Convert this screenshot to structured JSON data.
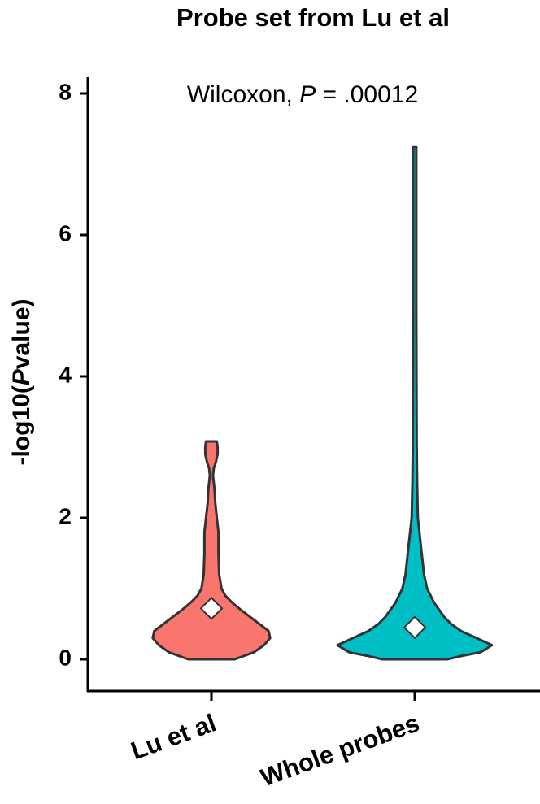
{
  "chart_data": {
    "type": "violin",
    "title": "Probe set from Lu et al",
    "annotation": {
      "prefix": "Wilcoxon, ",
      "italic": "P",
      "suffix": " = .00012"
    },
    "y_label": {
      "prefix": "-log10(",
      "italic": "P",
      "suffix": "value)"
    },
    "categories": [
      "Lu et al",
      "Whole probes"
    ],
    "series": [
      {
        "color": "#F8766D",
        "y": [
          0,
          0.1,
          0.2,
          0.3,
          0.4,
          0.5,
          0.6,
          0.7,
          0.8,
          0.9,
          1.0,
          1.2,
          1.5,
          1.8,
          2.0,
          2.2,
          2.4,
          2.6,
          2.7,
          2.8,
          2.9,
          3.0,
          3.08
        ],
        "density": [
          0.3,
          0.55,
          0.68,
          0.76,
          0.74,
          0.62,
          0.5,
          0.38,
          0.27,
          0.18,
          0.13,
          0.1,
          0.09,
          0.09,
          0.07,
          0.05,
          0.04,
          0.02,
          0.03,
          0.06,
          0.08,
          0.08,
          0.07
        ]
      },
      {
        "color": "#00BFC4",
        "y": [
          0,
          0.05,
          0.1,
          0.2,
          0.3,
          0.4,
          0.5,
          0.6,
          0.8,
          1.0,
          1.2,
          1.5,
          1.8,
          2.0,
          2.5,
          3.0,
          4.0,
          5.0,
          6.0,
          7.25
        ],
        "density": [
          0.42,
          0.62,
          0.85,
          1.0,
          0.8,
          0.6,
          0.47,
          0.38,
          0.25,
          0.16,
          0.12,
          0.09,
          0.06,
          0.04,
          0.03,
          0.025,
          0.022,
          0.02,
          0.02,
          0.02
        ]
      }
    ],
    "means": [
      0.72,
      0.45
    ],
    "ylim": [
      0,
      8
    ],
    "yticks": [
      0,
      2,
      4,
      6,
      8
    ]
  }
}
